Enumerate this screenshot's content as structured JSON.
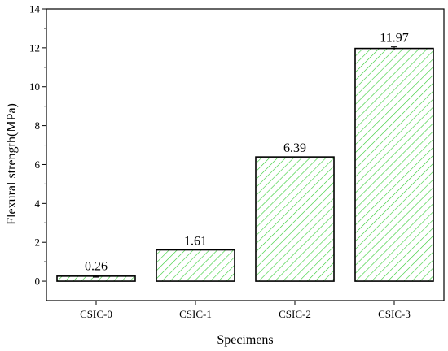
{
  "chart_data": {
    "type": "bar",
    "categories": [
      "CSIC-0",
      "CSIC-1",
      "CSIC-2",
      "CSIC-3"
    ],
    "values": [
      0.26,
      1.61,
      6.39,
      11.97
    ],
    "value_labels": [
      "0.26",
      "1.61",
      "6.39",
      "11.97"
    ],
    "error": [
      0.05,
      0,
      0,
      0.08
    ],
    "xlabel": "Specimens",
    "ylabel": "Flexural strength(MPa)",
    "ylim": [
      -1,
      14
    ],
    "yticks": [
      0,
      2,
      4,
      6,
      8,
      10,
      12,
      14
    ],
    "yticklabels": [
      "0",
      "2",
      "4",
      "6",
      "8",
      "10",
      "12",
      "14"
    ],
    "grid": false,
    "bar_fill_pattern": "diagonal-hatch",
    "colors": {
      "hatch": "#33cc33",
      "bar_edge": "#000000"
    }
  }
}
